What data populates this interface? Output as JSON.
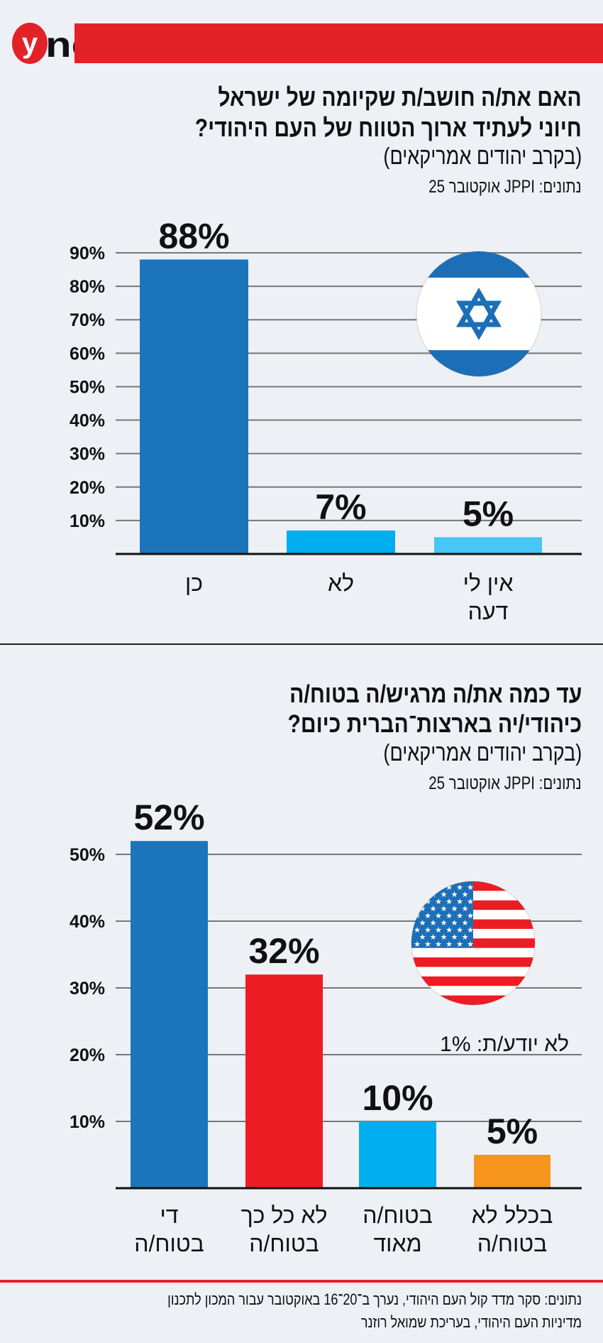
{
  "brand": {
    "logo_text": "ynet",
    "accent": "#e32228"
  },
  "chart_data": [
    {
      "type": "bar",
      "title": "האם את/ה חושב/ת שקיומה של ישראל חיוני לעתיד ארוך הטווח של העם היהודי?",
      "title_lines": [
        "האם את/ה חושב/ת שקיומה של ישראל",
        "חיוני לעתיד ארוך הטווח של העם היהודי?"
      ],
      "subtitle": "(בקרב יהודים אמריקאים)",
      "source": "נתונים: JPPI אוקטובר 25",
      "categories": [
        [
          "כן"
        ],
        [
          "לא"
        ],
        [
          "אין לי",
          "דעה"
        ]
      ],
      "values": [
        88,
        7,
        5
      ],
      "value_labels": [
        "88%",
        "7%",
        "5%"
      ],
      "colors": [
        "#1c75bb",
        "#00aeef",
        "#45c6f4"
      ],
      "yticks": [
        10,
        20,
        30,
        40,
        50,
        60,
        70,
        80,
        90
      ],
      "ytick_labels": [
        "10%",
        "20%",
        "30%",
        "40%",
        "50%",
        "60%",
        "70%",
        "80%",
        "90%"
      ],
      "ylim": [
        0,
        90
      ],
      "grid": true,
      "icon": "israel-flag-icon"
    },
    {
      "type": "bar",
      "title": "עד כמה את/ה מרגיש/ה בטוח/ה כיהודי/יה בארצות־הברית כיום?",
      "title_lines": [
        "עד כמה את/ה מרגיש/ה בטוח/ה",
        "כיהודי/יה בארצות־הברית כיום?"
      ],
      "subtitle": "(בקרב יהודים אמריקאים)",
      "source": "נתונים: JPPI אוקטובר 25",
      "categories": [
        [
          "די",
          "בטוח/ה"
        ],
        [
          "לא כל כך",
          "בטוח/ה"
        ],
        [
          "בטוח/ה",
          "מאוד"
        ],
        [
          "בכלל לא",
          "בטוח/ה"
        ]
      ],
      "values": [
        52,
        32,
        10,
        5
      ],
      "value_labels": [
        "52%",
        "32%",
        "10%",
        "5%"
      ],
      "colors": [
        "#1c75bb",
        "#ed1c24",
        "#00aeef",
        "#f7941d"
      ],
      "yticks": [
        10,
        20,
        30,
        40,
        50
      ],
      "ytick_labels": [
        "10%",
        "20%",
        "30%",
        "40%",
        "50%"
      ],
      "ylim": [
        0,
        50
      ],
      "grid": true,
      "annotation": "לא יודע/ת: 1%",
      "icon": "us-flag-icon"
    }
  ],
  "footer": {
    "lines": [
      "נתונים: סקר מדד קול העם היהודי, נערך ב־20־16 באוקטובר עבור המכון לתכנון",
      "מדיניות העם היהודי, בעריכת שמואל רוזנר"
    ]
  }
}
